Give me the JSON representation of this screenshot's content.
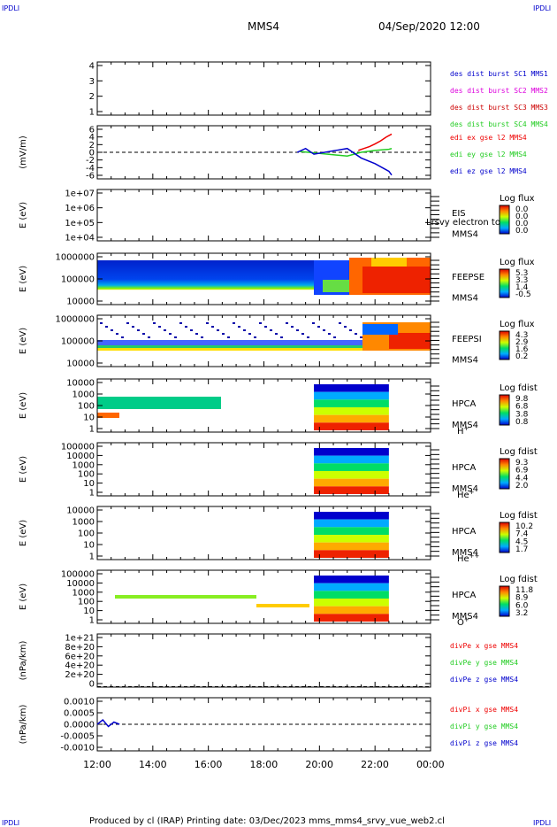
{
  "corner_labels": {
    "tl": "IPDLI",
    "tr": "IPDLI",
    "bl": "IPDLI",
    "br": "IPDLI"
  },
  "header": {
    "spacecraft": "MMS4",
    "datetime": "04/Sep/2020 12:00"
  },
  "footer": {
    "text": "Produced by cl (IRAP)   Printing date: 03/Dec/2023   mms_mms4_srvy_vue_web2.cl"
  },
  "colors": {
    "red": "#ee0000",
    "green": "#22cc22",
    "blue": "#0000cc",
    "magenta": "#dd00dd",
    "black": "#000000"
  },
  "chart_data": [
    {
      "type": "line",
      "id": "des_burst",
      "xlim": [
        "12:00",
        "00:00"
      ],
      "ylim": [
        0.5,
        4.5
      ],
      "ylabel": "",
      "yticks": [
        "1",
        "2",
        "3",
        "4"
      ],
      "legend": [
        {
          "text": "des dist burst SC1 MMS1",
          "color": "#0000cc"
        },
        {
          "text": "des dist burst SC2 MMS2",
          "color": "#dd00dd"
        },
        {
          "text": "des dist burst SC3 MMS3",
          "color": "#cc0000"
        },
        {
          "text": "des dist burst SC4 MMS4",
          "color": "#22cc22"
        }
      ],
      "series": []
    },
    {
      "type": "line",
      "id": "edi_e",
      "ylim": [
        -7,
        7
      ],
      "ylabel": "(mV/m)",
      "yticks": [
        "-6",
        "-4",
        "-2",
        "0",
        "2",
        "4",
        "6"
      ],
      "legend": [
        {
          "text": "edi ex gse l2 MMS4",
          "color": "#ee0000"
        },
        {
          "text": "edi ey gse l2 MMS4",
          "color": "#22cc22"
        },
        {
          "text": "edi ez gse l2 MMS4",
          "color": "#0000cc"
        }
      ],
      "series": [
        {
          "color": "#ee0000",
          "x": [
            21.4,
            21.6,
            21.8,
            22.0,
            22.2,
            22.4,
            22.6
          ],
          "y": [
            0.5,
            1.0,
            1.5,
            2.2,
            3.0,
            4.0,
            4.8
          ]
        },
        {
          "color": "#22cc22",
          "x": [
            19.3,
            19.6,
            21.0,
            21.5,
            22.0,
            22.5,
            22.6
          ],
          "y": [
            0.2,
            0.0,
            -1.0,
            0.0,
            0.5,
            0.8,
            1.0
          ]
        },
        {
          "color": "#0000cc",
          "x": [
            19.2,
            19.5,
            19.8,
            21.0,
            21.5,
            22.0,
            22.5,
            22.6
          ],
          "y": [
            0.0,
            1.0,
            -0.5,
            1.0,
            -1.5,
            -3.0,
            -5.0,
            -6.0
          ]
        }
      ]
    },
    {
      "type": "heatmap",
      "id": "eis",
      "ylabel": "E (eV)",
      "yticks": [
        "1e+04",
        "1e+05",
        "1e+06",
        "1e+07"
      ],
      "instrument": "EIS",
      "overlay": "Lrsvy electron to",
      "sc": "MMS4",
      "colorbar": {
        "title": "Log flux",
        "ticks": [
          "0.0",
          "0.0",
          "0.0",
          "0.0"
        ]
      }
    },
    {
      "type": "heatmap",
      "id": "feepse",
      "ylabel": "E (eV)",
      "yticks": [
        "10000",
        "100000",
        "1000000"
      ],
      "instrument": "FEEPSE",
      "sc": "MMS4",
      "colorbar": {
        "title": "Log flux",
        "ticks": [
          "5.3",
          "3.3",
          "1.4",
          "-0.5"
        ]
      }
    },
    {
      "type": "heatmap",
      "id": "feepsi",
      "ylabel": "E (eV)",
      "yticks": [
        "10000",
        "100000",
        "1000000"
      ],
      "instrument": "FEEPSI",
      "sc": "MMS4",
      "colorbar": {
        "title": "Log flux",
        "ticks": [
          "4.3",
          "2.9",
          "1.6",
          "0.2"
        ]
      }
    },
    {
      "type": "heatmap",
      "id": "hpca_h",
      "ylabel": "E (eV)",
      "yticks": [
        "1",
        "10",
        "100",
        "1000",
        "10000"
      ],
      "instrument": "HPCA",
      "sc": "MMS4",
      "species": "H",
      "charge": "+",
      "colorbar": {
        "title": "Log fdist",
        "ticks": [
          "9.8",
          "6.8",
          "3.8",
          "0.8"
        ]
      }
    },
    {
      "type": "heatmap",
      "id": "hpca_he",
      "ylabel": "E (eV)",
      "yticks": [
        "1",
        "10",
        "100",
        "1000",
        "10000",
        "100000"
      ],
      "instrument": "HPCA",
      "sc": "MMS4",
      "species": "He",
      "charge": "+",
      "colorbar": {
        "title": "Log fdist",
        "ticks": [
          "9.3",
          "6.9",
          "4.4",
          "2.0"
        ]
      }
    },
    {
      "type": "heatmap",
      "id": "hpca_he2",
      "ylabel": "E (eV)",
      "yticks": [
        "1",
        "10",
        "100",
        "1000",
        "10000"
      ],
      "instrument": "HPCA",
      "sc": "MMS4",
      "species": "He",
      "charge": "++",
      "colorbar": {
        "title": "Log fdist",
        "ticks": [
          "10.2",
          "7.4",
          "4.5",
          "1.7"
        ]
      }
    },
    {
      "type": "heatmap",
      "id": "hpca_o",
      "ylabel": "E (eV)",
      "yticks": [
        "1",
        "10",
        "100",
        "1000",
        "10000",
        "100000"
      ],
      "instrument": "HPCA",
      "sc": "MMS4",
      "species": "O",
      "charge": "+",
      "colorbar": {
        "title": "Log fdist",
        "ticks": [
          "11.8",
          "8.9",
          "6.0",
          "3.2"
        ]
      }
    },
    {
      "type": "line",
      "id": "divpe",
      "ylim": [
        -1e+19,
        1.1e+21
      ],
      "ylabel": "(nPa/km)",
      "yticks": [
        "0",
        "2e+20",
        "4e+20",
        "6e+20",
        "8e+20",
        "1e+21"
      ],
      "legend": [
        {
          "text": "divPe x gse MMS4",
          "color": "#ee0000"
        },
        {
          "text": "divPe y gse MMS4",
          "color": "#22cc22"
        },
        {
          "text": "divPe z gse MMS4",
          "color": "#0000cc"
        }
      ],
      "series": []
    },
    {
      "type": "line",
      "id": "divpi",
      "ylim": [
        -0.0012,
        0.0012
      ],
      "ylabel": "(nPa/km)",
      "yticks": [
        "-0.0010",
        "-0.0005",
        "0.0000",
        "0.0005",
        "0.0010"
      ],
      "legend": [
        {
          "text": "divPi x gse MMS4",
          "color": "#ee0000"
        },
        {
          "text": "divPi y gse MMS4",
          "color": "#22cc22"
        },
        {
          "text": "divPi z gse MMS4",
          "color": "#0000cc"
        }
      ],
      "series": [
        {
          "color": "#0000cc",
          "x": [
            12.0,
            12.2,
            12.4,
            12.6,
            12.8
          ],
          "y": [
            0.0,
            0.0002,
            -0.0001,
            0.0001,
            0.0
          ]
        }
      ]
    }
  ],
  "time_axis": {
    "labels": [
      "12:00",
      "14:00",
      "16:00",
      "18:00",
      "20:00",
      "22:00",
      "00:00"
    ]
  }
}
